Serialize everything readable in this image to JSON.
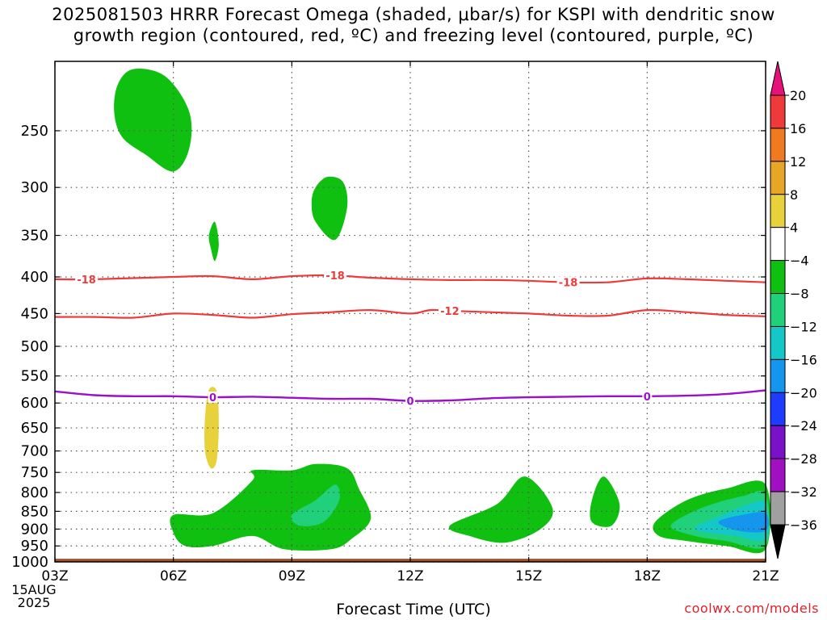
{
  "title_line1": "2025081503 HRRR Forecast Omega (shaded, μbar/s) for KSPI with dendritic snow",
  "title_line2": "growth region (contoured, red, ºC) and freezing level (contoured, purple, ºC)",
  "credit": "coolwx.com/models",
  "chart_data": {
    "type": "contour",
    "title": "2025081503 HRRR Forecast Omega (shaded, μbar/s) for KSPI with dendritic snow growth region (contoured, red, ºC) and freezing level (contoured, purple, ºC)",
    "xlabel": "Forecast Time (UTC)",
    "ylabel": "",
    "x_ticks": [
      "03Z",
      "06Z",
      "09Z",
      "12Z",
      "15Z",
      "18Z",
      "21Z"
    ],
    "x_tick_hours": [
      3,
      6,
      9,
      12,
      15,
      18,
      21
    ],
    "x_date_label": [
      "15AUG",
      "2025"
    ],
    "xlim": [
      3,
      21
    ],
    "y_ticks": [
      250,
      300,
      350,
      400,
      450,
      500,
      550,
      600,
      650,
      700,
      750,
      800,
      850,
      900,
      950,
      1000
    ],
    "ylim": [
      200,
      1000
    ],
    "y_scale": "log-pressure (inverted)",
    "grid": true,
    "colorbar": {
      "levels": [
        20,
        16,
        12,
        8,
        4,
        -4,
        -8,
        -12,
        -16,
        -20,
        -24,
        -28,
        -32,
        -36
      ],
      "colors": [
        "#e8107a",
        "#ee3a3a",
        "#f07a20",
        "#e6a628",
        "#e8d23c",
        "#ffffff",
        "#10c010",
        "#20d07a",
        "#14c8c8",
        "#1496ee",
        "#1e3cff",
        "#7a10c8",
        "#a010c0",
        "#a0a0a0",
        "#000000"
      ]
    },
    "dendritic_contours": [
      {
        "label": "-18",
        "color": "#ee3a3a",
        "points": [
          [
            3,
            403
          ],
          [
            4,
            403
          ],
          [
            6,
            400
          ],
          [
            7,
            399
          ],
          [
            8,
            403
          ],
          [
            9,
            399
          ],
          [
            10,
            398
          ],
          [
            11,
            401
          ],
          [
            12,
            403
          ],
          [
            13,
            404
          ],
          [
            14,
            404
          ],
          [
            15,
            405
          ],
          [
            16,
            407
          ],
          [
            17,
            407
          ],
          [
            18,
            402
          ],
          [
            19,
            403
          ],
          [
            20,
            405
          ],
          [
            21,
            407
          ]
        ]
      },
      {
        "label": "-12",
        "color": "#ee3a3a",
        "points": [
          [
            3,
            455
          ],
          [
            4,
            455
          ],
          [
            5,
            456
          ],
          [
            6,
            450
          ],
          [
            7,
            452
          ],
          [
            8,
            456
          ],
          [
            9,
            451
          ],
          [
            10,
            448
          ],
          [
            11,
            445
          ],
          [
            12,
            450
          ],
          [
            12.5,
            445
          ],
          [
            13,
            446
          ],
          [
            14,
            448
          ],
          [
            15,
            450
          ],
          [
            16,
            453
          ],
          [
            17,
            453
          ],
          [
            18,
            445
          ],
          [
            19,
            448
          ],
          [
            20,
            452
          ],
          [
            21,
            454
          ]
        ]
      }
    ],
    "freezing_level": {
      "label": "0",
      "color": "#9b10c8",
      "points": [
        [
          3,
          578
        ],
        [
          4,
          585
        ],
        [
          5,
          587
        ],
        [
          6,
          587
        ],
        [
          7,
          589
        ],
        [
          8,
          588
        ],
        [
          9,
          590
        ],
        [
          10,
          592
        ],
        [
          11,
          592
        ],
        [
          12,
          596
        ],
        [
          13,
          595
        ],
        [
          14,
          591
        ],
        [
          15,
          589
        ],
        [
          16,
          588
        ],
        [
          17,
          587
        ],
        [
          18,
          587
        ],
        [
          19,
          586
        ],
        [
          20,
          583
        ],
        [
          21,
          576
        ]
      ]
    },
    "contour_labels": [
      {
        "text": "-18",
        "x": 3.8,
        "y": 403
      },
      {
        "text": "-18",
        "x": 10.1,
        "y": 398
      },
      {
        "text": "-18",
        "x": 16.0,
        "y": 407
      },
      {
        "text": "-12",
        "x": 13.0,
        "y": 446
      },
      {
        "text": "0",
        "x": 7.0,
        "y": 589
      },
      {
        "text": "0",
        "x": 12.0,
        "y": 596
      },
      {
        "text": "0",
        "x": 18.0,
        "y": 587
      }
    ],
    "omega_regions": [
      {
        "level": "-4 to -8",
        "polygon": [
          [
            4.6,
            215
          ],
          [
            5.0,
            205
          ],
          [
            5.8,
            210
          ],
          [
            6.4,
            235
          ],
          [
            6.4,
            265
          ],
          [
            6.0,
            285
          ],
          [
            5.3,
            270
          ],
          [
            4.7,
            255
          ],
          [
            4.5,
            235
          ]
        ]
      },
      {
        "level": "-4 to -8",
        "polygon": [
          [
            9.6,
            300
          ],
          [
            9.9,
            290
          ],
          [
            10.3,
            295
          ],
          [
            10.4,
            320
          ],
          [
            10.1,
            355
          ],
          [
            9.6,
            335
          ],
          [
            9.5,
            315
          ]
        ]
      },
      {
        "level": "-4 to -8",
        "polygon": [
          [
            6.9,
            350
          ],
          [
            7.05,
            335
          ],
          [
            7.15,
            360
          ],
          [
            7.05,
            380
          ],
          [
            6.95,
            365
          ]
        ]
      },
      {
        "level": "4 to 8",
        "polygon": [
          [
            6.8,
            630
          ],
          [
            6.9,
            575
          ],
          [
            7.1,
            578
          ],
          [
            7.15,
            640
          ],
          [
            7.1,
            720
          ],
          [
            6.95,
            740
          ],
          [
            6.8,
            700
          ]
        ]
      },
      {
        "level": "-4 to -8",
        "polygon": [
          [
            6.0,
            860
          ],
          [
            7.0,
            855
          ],
          [
            8.0,
            770
          ],
          [
            8.0,
            745
          ],
          [
            9.0,
            745
          ],
          [
            9.6,
            730
          ],
          [
            10.4,
            740
          ],
          [
            10.7,
            790
          ],
          [
            11.0,
            870
          ],
          [
            10.5,
            930
          ],
          [
            10.0,
            960
          ],
          [
            8.8,
            960
          ],
          [
            8.0,
            920
          ],
          [
            7.0,
            950
          ],
          [
            6.3,
            950
          ],
          [
            6.0,
            910
          ]
        ]
      },
      {
        "level": "-8 to -12",
        "polygon": [
          [
            9.0,
            860
          ],
          [
            9.6,
            820
          ],
          [
            10.1,
            780
          ],
          [
            10.2,
            820
          ],
          [
            9.8,
            880
          ],
          [
            9.2,
            890
          ]
        ]
      },
      {
        "level": "-4 to -8",
        "polygon": [
          [
            13.0,
            890
          ],
          [
            14.2,
            830
          ],
          [
            14.9,
            760
          ],
          [
            15.6,
            840
          ],
          [
            15.3,
            900
          ],
          [
            14.4,
            940
          ],
          [
            13.5,
            920
          ]
        ]
      },
      {
        "level": "-4 to -8",
        "polygon": [
          [
            16.6,
            820
          ],
          [
            16.9,
            760
          ],
          [
            17.3,
            830
          ],
          [
            17.1,
            890
          ],
          [
            16.6,
            880
          ]
        ]
      },
      {
        "level": "-4 to -8",
        "polygon": [
          [
            18.2,
            880
          ],
          [
            19.0,
            820
          ],
          [
            20.0,
            790
          ],
          [
            21.0,
            780
          ],
          [
            21.0,
            960
          ],
          [
            20.0,
            950
          ],
          [
            19.0,
            935
          ],
          [
            18.3,
            920
          ]
        ]
      },
      {
        "level": "-8 to -12",
        "polygon": [
          [
            18.6,
            890
          ],
          [
            19.4,
            840
          ],
          [
            20.4,
            810
          ],
          [
            21.0,
            805
          ],
          [
            21.0,
            950
          ],
          [
            20.0,
            935
          ],
          [
            19.2,
            920
          ]
        ]
      },
      {
        "level": "-12 to -16",
        "polygon": [
          [
            19.2,
            900
          ],
          [
            19.9,
            860
          ],
          [
            20.6,
            830
          ],
          [
            21.0,
            830
          ],
          [
            21.0,
            930
          ],
          [
            20.2,
            920
          ]
        ]
      },
      {
        "level": "-16 to -20",
        "polygon": [
          [
            19.8,
            880
          ],
          [
            20.4,
            860
          ],
          [
            21.0,
            855
          ],
          [
            21.0,
            905
          ],
          [
            20.3,
            905
          ]
        ]
      }
    ],
    "surface_band": {
      "color": "#a0522d",
      "y_top": 990,
      "y_bottom": 1000
    }
  }
}
